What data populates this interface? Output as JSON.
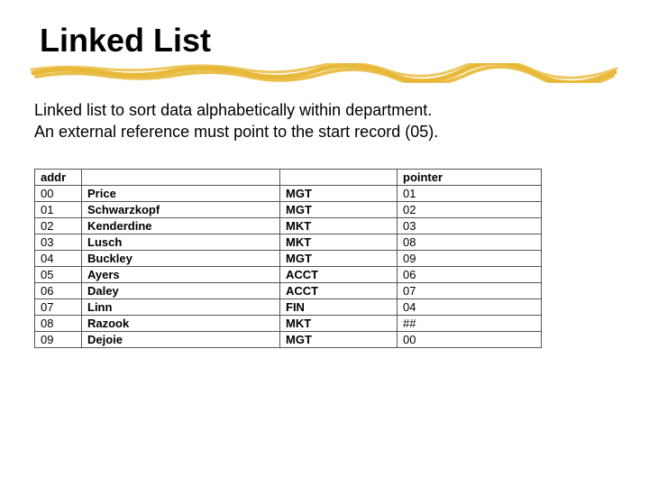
{
  "slide": {
    "title": "Linked List",
    "description_line1": "Linked list to sort data alphabetically within department.",
    "description_line2": "An external reference must point to the start record (05).",
    "underline_color": "#e8b838"
  },
  "table": {
    "headers": {
      "addr": "addr",
      "name": "",
      "dept": "",
      "pointer": "pointer"
    },
    "rows": [
      {
        "addr": "00",
        "name": "Price",
        "dept": "MGT",
        "pointer": "01"
      },
      {
        "addr": "01",
        "name": "Schwarzkopf",
        "dept": "MGT",
        "pointer": "02"
      },
      {
        "addr": "02",
        "name": "Kenderdine",
        "dept": "MKT",
        "pointer": "03"
      },
      {
        "addr": "03",
        "name": "Lusch",
        "dept": "MKT",
        "pointer": "08"
      },
      {
        "addr": "04",
        "name": "Buckley",
        "dept": "MGT",
        "pointer": "09"
      },
      {
        "addr": "05",
        "name": "Ayers",
        "dept": "ACCT",
        "pointer": "06"
      },
      {
        "addr": "06",
        "name": "Daley",
        "dept": "ACCT",
        "pointer": "07"
      },
      {
        "addr": "07",
        "name": "Linn",
        "dept": "FIN",
        "pointer": "04"
      },
      {
        "addr": "08",
        "name": "Razook",
        "dept": "MKT",
        "pointer": "##"
      },
      {
        "addr": "09",
        "name": "Dejoie",
        "dept": "MGT",
        "pointer": "00"
      }
    ]
  }
}
